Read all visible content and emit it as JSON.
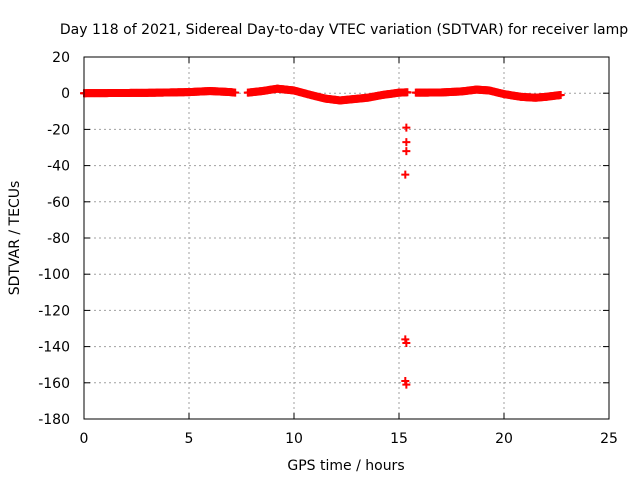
{
  "chart_data": {
    "type": "scatter",
    "title": "Day 118 of 2021, Sidereal Day-to-day VTEC variation (SDTVAR) for receiver lamp",
    "xlabel": "GPS time / hours",
    "ylabel": "SDTVAR / TECUs",
    "xlim": [
      0,
      25
    ],
    "ylim": [
      -180,
      20
    ],
    "xticks": [
      0,
      5,
      10,
      15,
      20,
      25
    ],
    "yticks": [
      20,
      0,
      -20,
      -40,
      -60,
      -80,
      -100,
      -120,
      -140,
      -160,
      -180
    ],
    "grid": true,
    "marker": "+",
    "color": "#ff0000",
    "series": [
      {
        "name": "SDTVAR",
        "continuous_segments": [
          [
            [
              0.0,
              0.0
            ],
            [
              3.0,
              0.2
            ],
            [
              5.0,
              0.6
            ],
            [
              6.0,
              1.2
            ],
            [
              7.0,
              0.6
            ],
            [
              7.2,
              0.3
            ]
          ],
          [
            [
              7.8,
              0.3
            ],
            [
              8.5,
              1.2
            ],
            [
              9.2,
              2.5
            ],
            [
              10.0,
              1.5
            ],
            [
              10.8,
              -1.0
            ],
            [
              11.5,
              -3.0
            ],
            [
              12.2,
              -4.0
            ],
            [
              12.8,
              -3.3
            ],
            [
              13.5,
              -2.5
            ],
            [
              14.2,
              -1.0
            ],
            [
              15.0,
              0.3
            ],
            [
              15.4,
              0.5
            ]
          ],
          [
            [
              15.8,
              0.3
            ],
            [
              17.0,
              0.4
            ],
            [
              18.0,
              1.0
            ],
            [
              18.7,
              2.0
            ],
            [
              19.3,
              1.5
            ],
            [
              20.0,
              -0.5
            ],
            [
              20.8,
              -2.0
            ],
            [
              21.5,
              -2.5
            ],
            [
              22.0,
              -2.0
            ],
            [
              22.7,
              -1.0
            ]
          ]
        ],
        "outliers": [
          [
            15.35,
            -19
          ],
          [
            15.35,
            -27
          ],
          [
            15.35,
            -32
          ],
          [
            15.3,
            -45
          ],
          [
            15.3,
            -136
          ],
          [
            15.35,
            -138
          ],
          [
            15.3,
            -159
          ],
          [
            15.35,
            -161
          ]
        ]
      }
    ]
  }
}
